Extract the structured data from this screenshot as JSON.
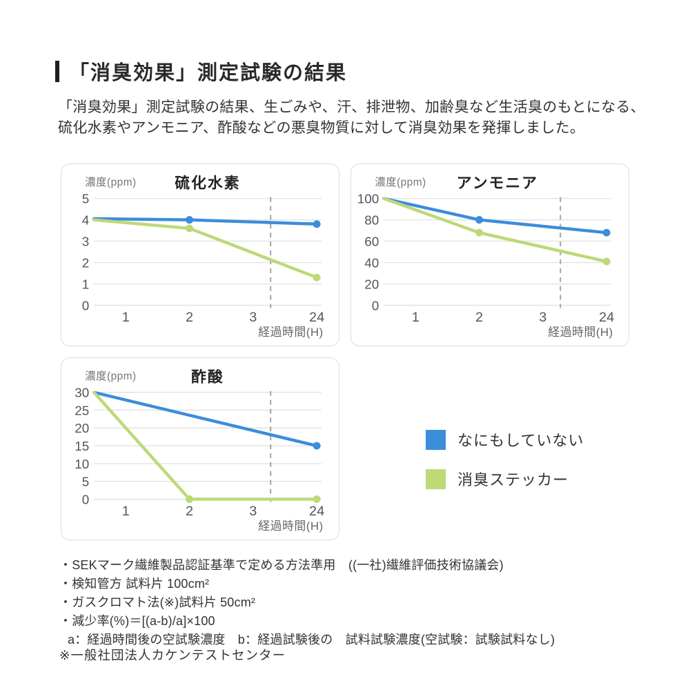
{
  "page": {
    "title": "「消臭効果」測定試験の結果",
    "intro_lines": [
      "「消臭効果」測定試験の結果、生ごみや、汗、排泄物、加齢臭など生活臭のもとになる、",
      "硫化水素やアンモニア、酢酸などの悪臭物質に対して消臭効果を発揮しました。"
    ]
  },
  "colors": {
    "blue": "#3c8dda",
    "green": "#bdd978",
    "grid": "#e3e3e3",
    "dashed": "#a3a3a3",
    "tick": "#555555",
    "axis_label": "#757575",
    "xaxis_label": "#666666",
    "chart_title": "#222222",
    "card_border": "#dcdcdc"
  },
  "legend": {
    "items": [
      {
        "label": "なにもしていない",
        "color_key": "blue"
      },
      {
        "label": "消臭ステッカー",
        "color_key": "green"
      }
    ]
  },
  "chart_data": [
    {
      "type": "line",
      "title": "硫化水素",
      "ylabel": "濃度(ppm)",
      "xlabel": "経過時間(H)",
      "x_ticks": [
        "1",
        "2",
        "3",
        "24"
      ],
      "ylim": [
        0,
        5
      ],
      "y_ticks": [
        0,
        1,
        2,
        3,
        4,
        5
      ],
      "grid": true,
      "dashed_vline_between": [
        "3",
        "24"
      ],
      "series": [
        {
          "name": "なにもしていない",
          "color": "blue",
          "x": [
            0,
            2,
            24
          ],
          "values": [
            4.05,
            4.0,
            3.8
          ],
          "markers": [
            2,
            24
          ]
        },
        {
          "name": "消臭ステッカー",
          "color": "green",
          "x": [
            0,
            2,
            24
          ],
          "values": [
            4.0,
            3.6,
            1.3
          ],
          "markers": [
            2,
            24
          ]
        }
      ]
    },
    {
      "type": "line",
      "title": "アンモニア",
      "ylabel": "濃度(ppm)",
      "xlabel": "経過時間(H)",
      "x_ticks": [
        "1",
        "2",
        "3",
        "24"
      ],
      "ylim": [
        0,
        100
      ],
      "y_ticks": [
        0,
        20,
        40,
        60,
        80,
        100
      ],
      "grid": true,
      "dashed_vline_between": [
        "3",
        "24"
      ],
      "series": [
        {
          "name": "なにもしていない",
          "color": "blue",
          "x": [
            0,
            2,
            24
          ],
          "values": [
            100,
            80,
            68
          ],
          "markers": [
            2,
            24
          ]
        },
        {
          "name": "消臭ステッカー",
          "color": "green",
          "x": [
            0,
            2,
            24
          ],
          "values": [
            100,
            68,
            41
          ],
          "markers": [
            2,
            24
          ]
        }
      ]
    },
    {
      "type": "line",
      "title": "酢酸",
      "ylabel": "濃度(ppm)",
      "xlabel": "経過時間(H)",
      "x_ticks": [
        "1",
        "2",
        "3",
        "24"
      ],
      "ylim": [
        0,
        30
      ],
      "y_ticks": [
        0,
        5,
        10,
        15,
        20,
        25,
        30
      ],
      "grid": true,
      "dashed_vline_between": [
        "3",
        "24"
      ],
      "series": [
        {
          "name": "なにもしていない",
          "color": "blue",
          "x": [
            0,
            24
          ],
          "values": [
            30,
            15
          ],
          "markers": [
            24
          ]
        },
        {
          "name": "消臭ステッカー",
          "color": "green",
          "x": [
            0,
            2,
            24
          ],
          "values": [
            30,
            0,
            0
          ],
          "markers": [
            2,
            24
          ]
        }
      ]
    }
  ],
  "footnotes": [
    "・SEKマーク繊維製品認証基準で定める方法準用　((一社)繊維評価技術協議会)",
    "・検知管方 試料片 100cm²",
    "・ガスクロマト法(※)試料片 50cm²",
    "・減少率(%)＝[(a-b)/a]×100",
    "a：経過時間後の空試験濃度　b：経過試験後の　試料試験濃度(空試験：試験試料なし)"
  ],
  "bottom_note": "※一般社団法人カケンテストセンター"
}
